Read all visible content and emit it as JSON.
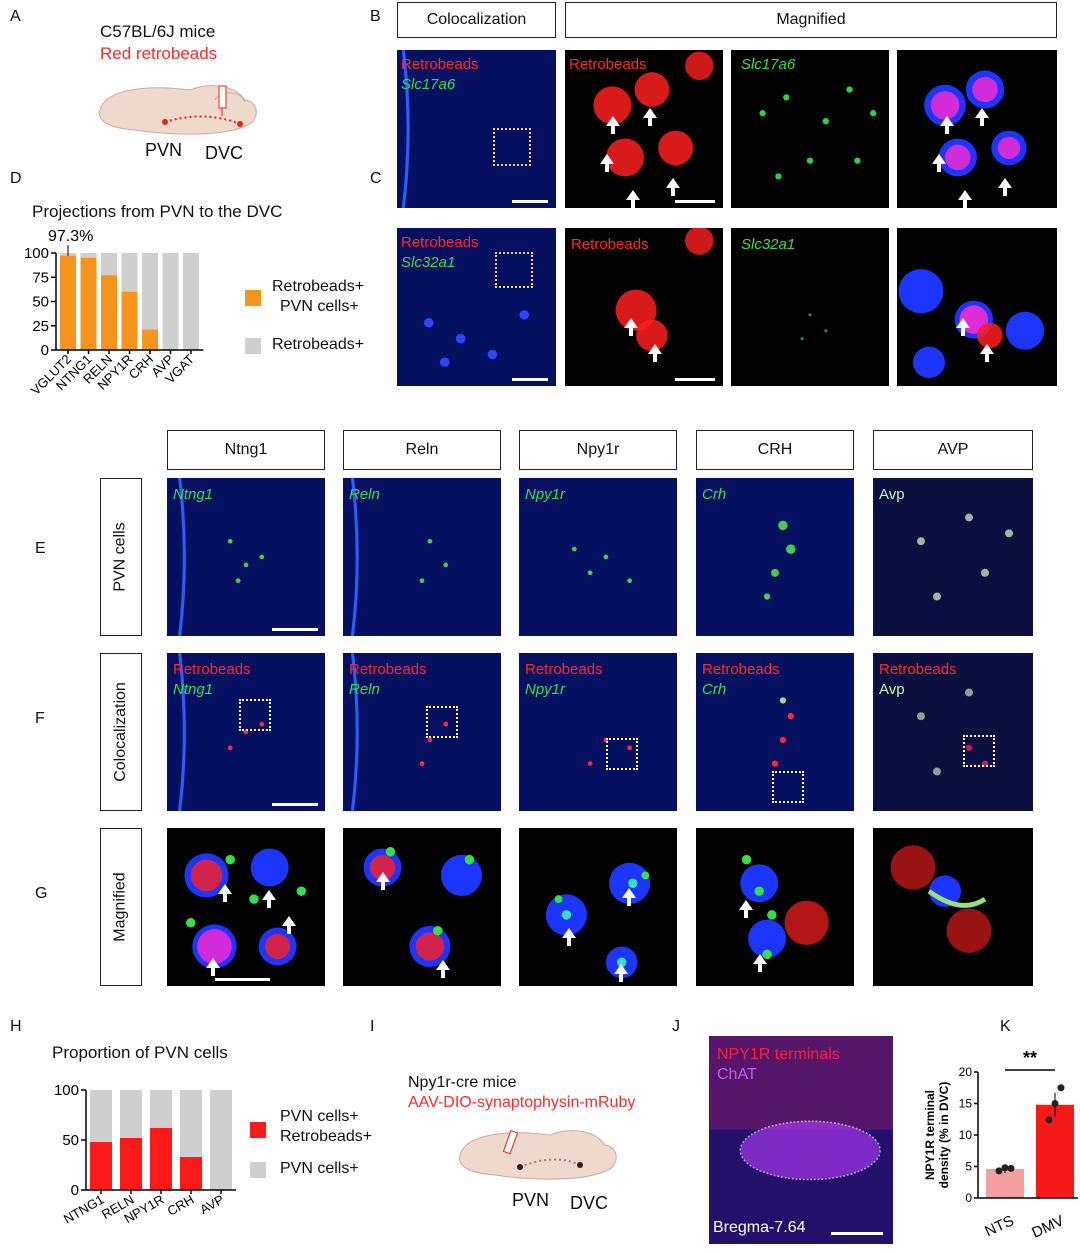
{
  "panels": {
    "A": "A",
    "B": "B",
    "C": "C",
    "D": "D",
    "E": "E",
    "F": "F",
    "G": "G",
    "H": "H",
    "I": "I",
    "J": "J",
    "K": "K"
  },
  "panelA": {
    "strain": "C57BL/6J mice",
    "tracer": "Red retrobeads",
    "site1": "PVN",
    "site2": "DVC"
  },
  "panelB": {
    "hdr_coloc": "Colocalization",
    "hdr_mag": "Magnified",
    "retro": "Retrobeads",
    "gene": "Slc17a6"
  },
  "panelC": {
    "retro": "Retrobeads",
    "gene": "Slc32a1"
  },
  "panelD": {
    "title": "Projections from PVN to the DVC",
    "annotation": "97.3%",
    "legend1a": "Retrobeads+",
    "legend1b": "PVN cells+",
    "legend2": "Retrobeads+",
    "colors": {
      "pos": "#f7941d",
      "neg": "#cfcfcf"
    }
  },
  "panelE": {
    "row_label": "PVN cells",
    "cols": [
      "Ntng1",
      "Reln",
      "Npy1r",
      "CRH",
      "AVP"
    ],
    "genes": [
      "Ntng1",
      "Reln",
      "Npy1r",
      "Crh",
      "Avp"
    ]
  },
  "panelF": {
    "row_label": "Colocalization",
    "retro": "Retrobeads"
  },
  "panelG": {
    "row_label": "Magnified"
  },
  "panelH": {
    "title": "Proportion of PVN cells",
    "legend1a": "PVN cells+",
    "legend1b": "Retrobeads+",
    "legend2": "PVN cells+",
    "colors": {
      "pos": "#ff1a1a",
      "neg": "#cfcfcf"
    }
  },
  "panelI": {
    "strain": "Npy1r-cre mice",
    "virus": "AAV-DIO-synaptophysin-mRuby",
    "site1": "PVN",
    "site2": "DVC"
  },
  "panelJ": {
    "label1": "NPY1R terminals",
    "label2": "ChAT",
    "bregma": "Bregma-7.64"
  },
  "panelK": {
    "ylabel_a": "NPY1R terminal",
    "ylabel_b": "density (% in DVC)",
    "sig": "**"
  },
  "chart_data": [
    {
      "type": "bar",
      "title": "Projections from PVN to the DVC",
      "categories": [
        "VGLUT2",
        "NTNG1",
        "RELN",
        "NPY1R",
        "CRH",
        "AVP",
        "VGAT"
      ],
      "series": [
        {
          "name": "Retrobeads+ PVN cells+",
          "values": [
            97.3,
            95,
            77,
            60,
            21,
            0,
            0
          ]
        },
        {
          "name": "Retrobeads+",
          "values": [
            100,
            100,
            100,
            100,
            100,
            100,
            100
          ]
        }
      ],
      "ylim": [
        0,
        100
      ],
      "yticks": [
        "0",
        "25",
        "50",
        "75",
        "100"
      ],
      "annotations": [
        "97.3%"
      ]
    },
    {
      "type": "bar",
      "title": "Proportion of PVN cells",
      "categories": [
        "NTNG1",
        "RELN",
        "NPY1R",
        "CRH",
        "AVP"
      ],
      "series": [
        {
          "name": "PVN cells+ Retrobeads+",
          "values": [
            48,
            52,
            62,
            33,
            0
          ]
        },
        {
          "name": "PVN cells+",
          "values": [
            100,
            100,
            100,
            100,
            100
          ]
        }
      ],
      "ylim": [
        0,
        100
      ],
      "yticks": [
        "0",
        "50",
        "100"
      ]
    },
    {
      "type": "bar",
      "categories": [
        "NTS",
        "DMV"
      ],
      "values": [
        4.6,
        14.8
      ],
      "points": [
        [
          4.3,
          4.8,
          4.7
        ],
        [
          12.4,
          15.0,
          17.5
        ]
      ],
      "ylabel": "NPY1R terminal density (% in DVC)",
      "ylim": [
        0,
        20
      ],
      "yticks": [
        "0",
        "5",
        "10",
        "15",
        "20"
      ],
      "annotations": [
        "**"
      ]
    }
  ]
}
